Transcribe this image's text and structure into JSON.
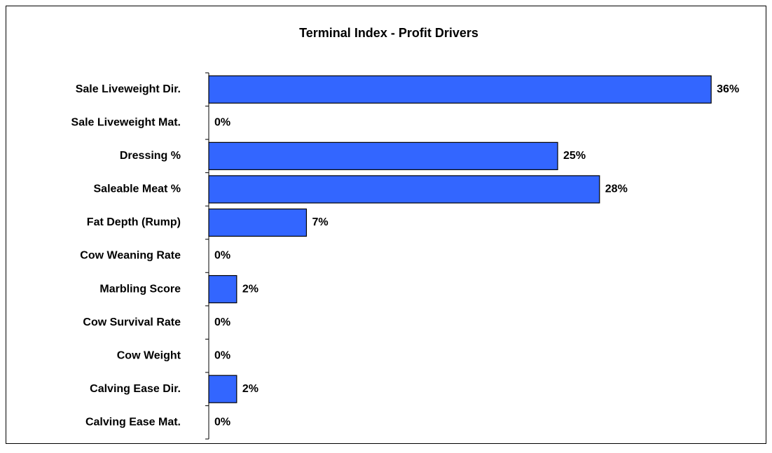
{
  "chart_data": {
    "type": "bar",
    "orientation": "horizontal",
    "title": "Terminal Index - Profit Drivers",
    "categories": [
      "Sale Liveweight Dir.",
      "Sale Liveweight Mat.",
      "Dressing %",
      "Saleable Meat %",
      "Fat Depth (Rump)",
      "Cow Weaning Rate",
      "Marbling Score",
      "Cow Survival Rate",
      "Cow Weight",
      "Calving Ease Dir.",
      "Calving Ease Mat."
    ],
    "values": [
      36,
      0,
      25,
      28,
      7,
      0,
      2,
      0,
      0,
      2,
      0
    ],
    "value_labels": [
      "36%",
      "0%",
      "25%",
      "28%",
      "7%",
      "0%",
      "2%",
      "0%",
      "0%",
      "2%",
      "0%"
    ],
    "color": "#3366ff",
    "xlim": [
      0,
      38
    ]
  }
}
